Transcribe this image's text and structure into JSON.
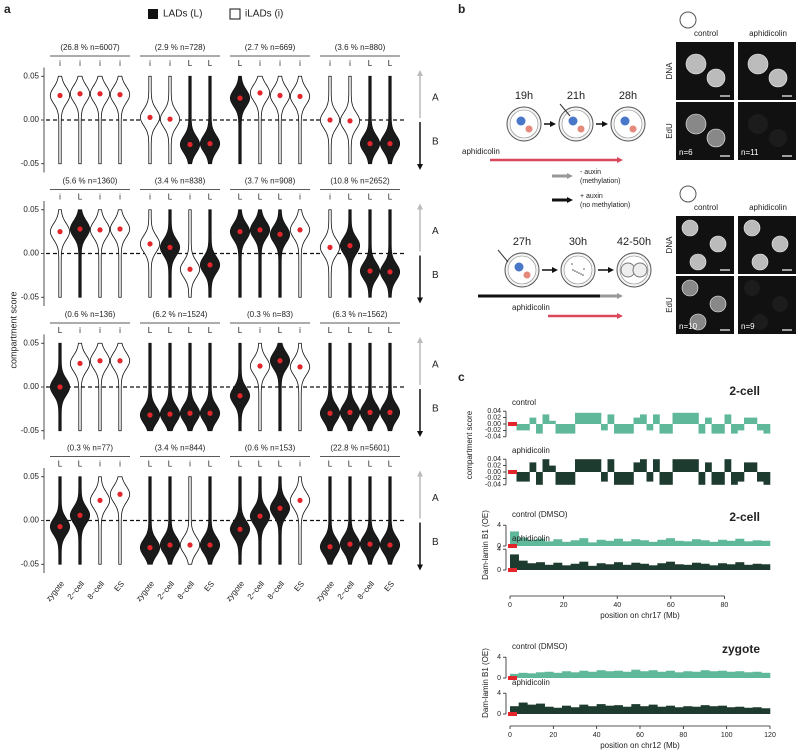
{
  "panel_a": {
    "label": "a",
    "legend": {
      "lad": "LADs (L)",
      "ilad": "iLADs (i)"
    },
    "y_label": "compartment score",
    "ylim": [
      -0.06,
      0.06
    ],
    "yticks": [
      {
        "value": -0.05,
        "label": "-0.05"
      },
      {
        "value": 0,
        "label": "0.00"
      },
      {
        "value": 0.05,
        "label": "0.05"
      }
    ],
    "categories": [
      "zygote",
      "2−cell",
      "8−cell",
      "ES"
    ],
    "compartments": [
      "A",
      "B"
    ],
    "rows": [
      [
        {
          "header": "(26.8 % n=6007)",
          "states": [
            "i",
            "i",
            "i",
            "i"
          ],
          "medians": [
            0.028,
            0.03,
            0.03,
            0.029
          ]
        },
        {
          "header": "(2.9 % n=728)",
          "states": [
            "i",
            "i",
            "L",
            "L"
          ],
          "medians": [
            0.003,
            0.001,
            -0.028,
            -0.027
          ]
        },
        {
          "header": "(2.7 % n=669)",
          "states": [
            "L",
            "i",
            "i",
            "i"
          ],
          "medians": [
            0.025,
            0.031,
            0.028,
            0.027
          ]
        },
        {
          "header": "(3.6 % n=880)",
          "states": [
            "i",
            "i",
            "L",
            "L"
          ],
          "medians": [
            0.0,
            -0.001,
            -0.027,
            -0.027
          ]
        }
      ],
      [
        {
          "header": "(5.6 % n=1360)",
          "states": [
            "i",
            "L",
            "i",
            "i"
          ],
          "medians": [
            0.025,
            0.028,
            0.027,
            0.028
          ]
        },
        {
          "header": "(3.4 % n=838)",
          "states": [
            "i",
            "L",
            "i",
            "L"
          ],
          "medians": [
            0.011,
            0.007,
            -0.018,
            -0.013
          ]
        },
        {
          "header": "(3.7 % n=908)",
          "states": [
            "L",
            "L",
            "L",
            "i"
          ],
          "medians": [
            0.025,
            0.027,
            0.022,
            0.027
          ]
        },
        {
          "header": "(10.8 % n=2652)",
          "states": [
            "i",
            "L",
            "L",
            "L"
          ],
          "medians": [
            0.007,
            0.009,
            -0.02,
            -0.021
          ]
        }
      ],
      [
        {
          "header": "(0.6 % n=136)",
          "states": [
            "L",
            "i",
            "i",
            "i"
          ],
          "medians": [
            0.0,
            0.027,
            0.03,
            0.03
          ]
        },
        {
          "header": "(6.2 % n=1524)",
          "states": [
            "L",
            "L",
            "L",
            "L"
          ],
          "medians": [
            -0.032,
            -0.031,
            -0.03,
            -0.03
          ]
        },
        {
          "header": "(0.3 % n=83)",
          "states": [
            "L",
            "i",
            "L",
            "i"
          ],
          "medians": [
            -0.01,
            0.024,
            0.03,
            0.023
          ]
        },
        {
          "header": "(6.3 % n=1562)",
          "states": [
            "L",
            "L",
            "L",
            "L"
          ],
          "medians": [
            -0.03,
            -0.029,
            -0.029,
            -0.029
          ]
        }
      ],
      [
        {
          "header": "(0.3 % n=77)",
          "states": [
            "L",
            "L",
            "i",
            "i"
          ],
          "medians": [
            -0.007,
            0.006,
            0.023,
            0.03
          ]
        },
        {
          "header": "(3.4 % n=844)",
          "states": [
            "L",
            "L",
            "i",
            "L"
          ],
          "medians": [
            -0.031,
            -0.028,
            -0.028,
            -0.028
          ]
        },
        {
          "header": "(0.6 % n=153)",
          "states": [
            "L",
            "L",
            "L",
            "i"
          ],
          "medians": [
            -0.01,
            0.005,
            0.014,
            0.023
          ]
        },
        {
          "header": "(22.8 % n=5601)",
          "states": [
            "L",
            "L",
            "L",
            "L"
          ],
          "medians": [
            -0.03,
            -0.027,
            -0.027,
            -0.028
          ]
        }
      ]
    ]
  },
  "panel_b": {
    "label": "b",
    "top": {
      "times": [
        "19h",
        "21h",
        "28h"
      ],
      "drug": "aphidicolin",
      "columns": [
        "control",
        "aphidicolin"
      ],
      "rows": [
        "DNA",
        "EdU"
      ],
      "counts": [
        "n=6",
        "n=11"
      ]
    },
    "legend": {
      "minus": "- auxin",
      "minus_note": "(methylation)",
      "plus": "+ auxin",
      "plus_note": "(no methylation)"
    },
    "bottom": {
      "times": [
        "27h",
        "30h",
        "42-50h"
      ],
      "drug": "aphidicolin",
      "columns": [
        "control",
        "aphidicolin"
      ],
      "rows": [
        "DNA",
        "EdU"
      ],
      "counts": [
        "n=10",
        "n=9"
      ]
    }
  },
  "panel_c": {
    "label": "c",
    "compartment": {
      "stage": "2-cell",
      "y_label": "compartment score",
      "ylim": [
        -0.05,
        0.05
      ],
      "yticks": [
        {
          "value": 0.04,
          "label": "0.04"
        },
        {
          "value": 0.02,
          "label": "0.02"
        },
        {
          "value": 0,
          "label": "0.00"
        },
        {
          "value": -0.02,
          "label": "-0.02"
        },
        {
          "value": -0.04,
          "label": "-0.04"
        }
      ],
      "tracks": [
        {
          "name": "control",
          "color": "#5fb89a",
          "values": [
            0,
            -0.02,
            -0.02,
            0.02,
            -0.03,
            0.03,
            0.01,
            -0.03,
            -0.03,
            -0.03,
            0.035,
            0.035,
            0.035,
            0.035,
            -0.02,
            0.03,
            -0.03,
            -0.03,
            -0.03,
            0.02,
            0.03,
            -0.02,
            0.03,
            -0.03,
            -0.03,
            0.035,
            0.035,
            0.035,
            0.035,
            -0.03,
            0.02,
            -0.03,
            -0.03,
            0.03,
            -0.03,
            -0.02,
            0.02,
            0.02,
            -0.02,
            -0.03
          ]
        },
        {
          "name": "aphidicolin",
          "color": "#1d3b2e",
          "values": [
            0,
            -0.03,
            -0.03,
            0.03,
            -0.04,
            0.04,
            0.02,
            -0.04,
            -0.04,
            -0.04,
            0.04,
            0.04,
            0.04,
            0.04,
            -0.03,
            0.04,
            -0.04,
            -0.04,
            -0.04,
            0.03,
            0.04,
            -0.03,
            0.04,
            -0.04,
            -0.04,
            0.04,
            0.04,
            0.04,
            0.04,
            -0.04,
            0.03,
            -0.04,
            -0.04,
            0.04,
            -0.04,
            -0.03,
            0.03,
            0.03,
            -0.03,
            -0.04
          ]
        }
      ]
    },
    "lamin_2cell": {
      "stage": "2-cell",
      "y_label": "Dam-lamin B1 (OE)",
      "ylim": [
        0,
        5
      ],
      "yticks": [
        0,
        4
      ],
      "xlim": [
        0,
        97
      ],
      "xticks": [
        0,
        20,
        40,
        60,
        80
      ],
      "x_label": "position on chr17 (Mb)",
      "tracks": [
        {
          "name": "control (DMSO)",
          "color": "#5fb89a",
          "values": [
            2.8,
            1.6,
            1.2,
            1.4,
            0.9,
            1.3,
            0.8,
            1.1,
            1.5,
            0.7,
            1.2,
            1.0,
            1.4,
            0.9,
            1.3,
            1.1,
            0.8,
            1.2,
            1.5,
            1.0,
            0.9,
            1.3,
            1.1,
            0.8,
            1.2,
            1.0,
            1.4,
            0.9,
            1.1,
            1.0
          ]
        },
        {
          "name": "aphidicolin",
          "color": "#1d3b2e",
          "values": [
            3.0,
            1.8,
            1.3,
            1.5,
            1.0,
            1.4,
            0.9,
            1.2,
            1.6,
            0.8,
            1.3,
            1.1,
            1.5,
            1.0,
            1.4,
            1.2,
            0.9,
            1.3,
            1.6,
            1.1,
            1.0,
            1.4,
            1.2,
            0.9,
            1.3,
            1.1,
            1.5,
            1.0,
            1.2,
            1.1
          ]
        }
      ]
    },
    "lamin_zygote": {
      "stage": "zygote",
      "y_label": "Dam-lamin B1 (OE)",
      "ylim": [
        0,
        5
      ],
      "yticks": [
        0,
        4
      ],
      "xlim": [
        0,
        120
      ],
      "xticks": [
        0,
        20,
        40,
        60,
        80,
        100,
        120
      ],
      "x_label": "position on chr12 (Mb)",
      "tracks": [
        {
          "name": "control (DMSO)",
          "color": "#5fb89a",
          "values": [
            0.8,
            1.0,
            0.9,
            1.1,
            1.2,
            1.0,
            1.3,
            1.1,
            1.4,
            1.2,
            1.5,
            1.3,
            1.4,
            1.2,
            1.6,
            1.3,
            1.5,
            1.2,
            1.4,
            1.1,
            1.3,
            1.2,
            1.5,
            1.3,
            1.4,
            1.2,
            1.3,
            1.1,
            1.2,
            1.0
          ]
        },
        {
          "name": "aphidicolin",
          "color": "#1d3b2e",
          "values": [
            1.5,
            2.2,
            1.8,
            2.0,
            1.4,
            1.2,
            1.6,
            1.3,
            1.8,
            1.5,
            1.9,
            1.6,
            1.7,
            1.4,
            1.9,
            1.5,
            1.8,
            1.4,
            1.6,
            1.3,
            1.5,
            1.4,
            1.7,
            1.5,
            1.6,
            1.3,
            1.4,
            1.2,
            1.3,
            1.1
          ]
        }
      ]
    }
  }
}
